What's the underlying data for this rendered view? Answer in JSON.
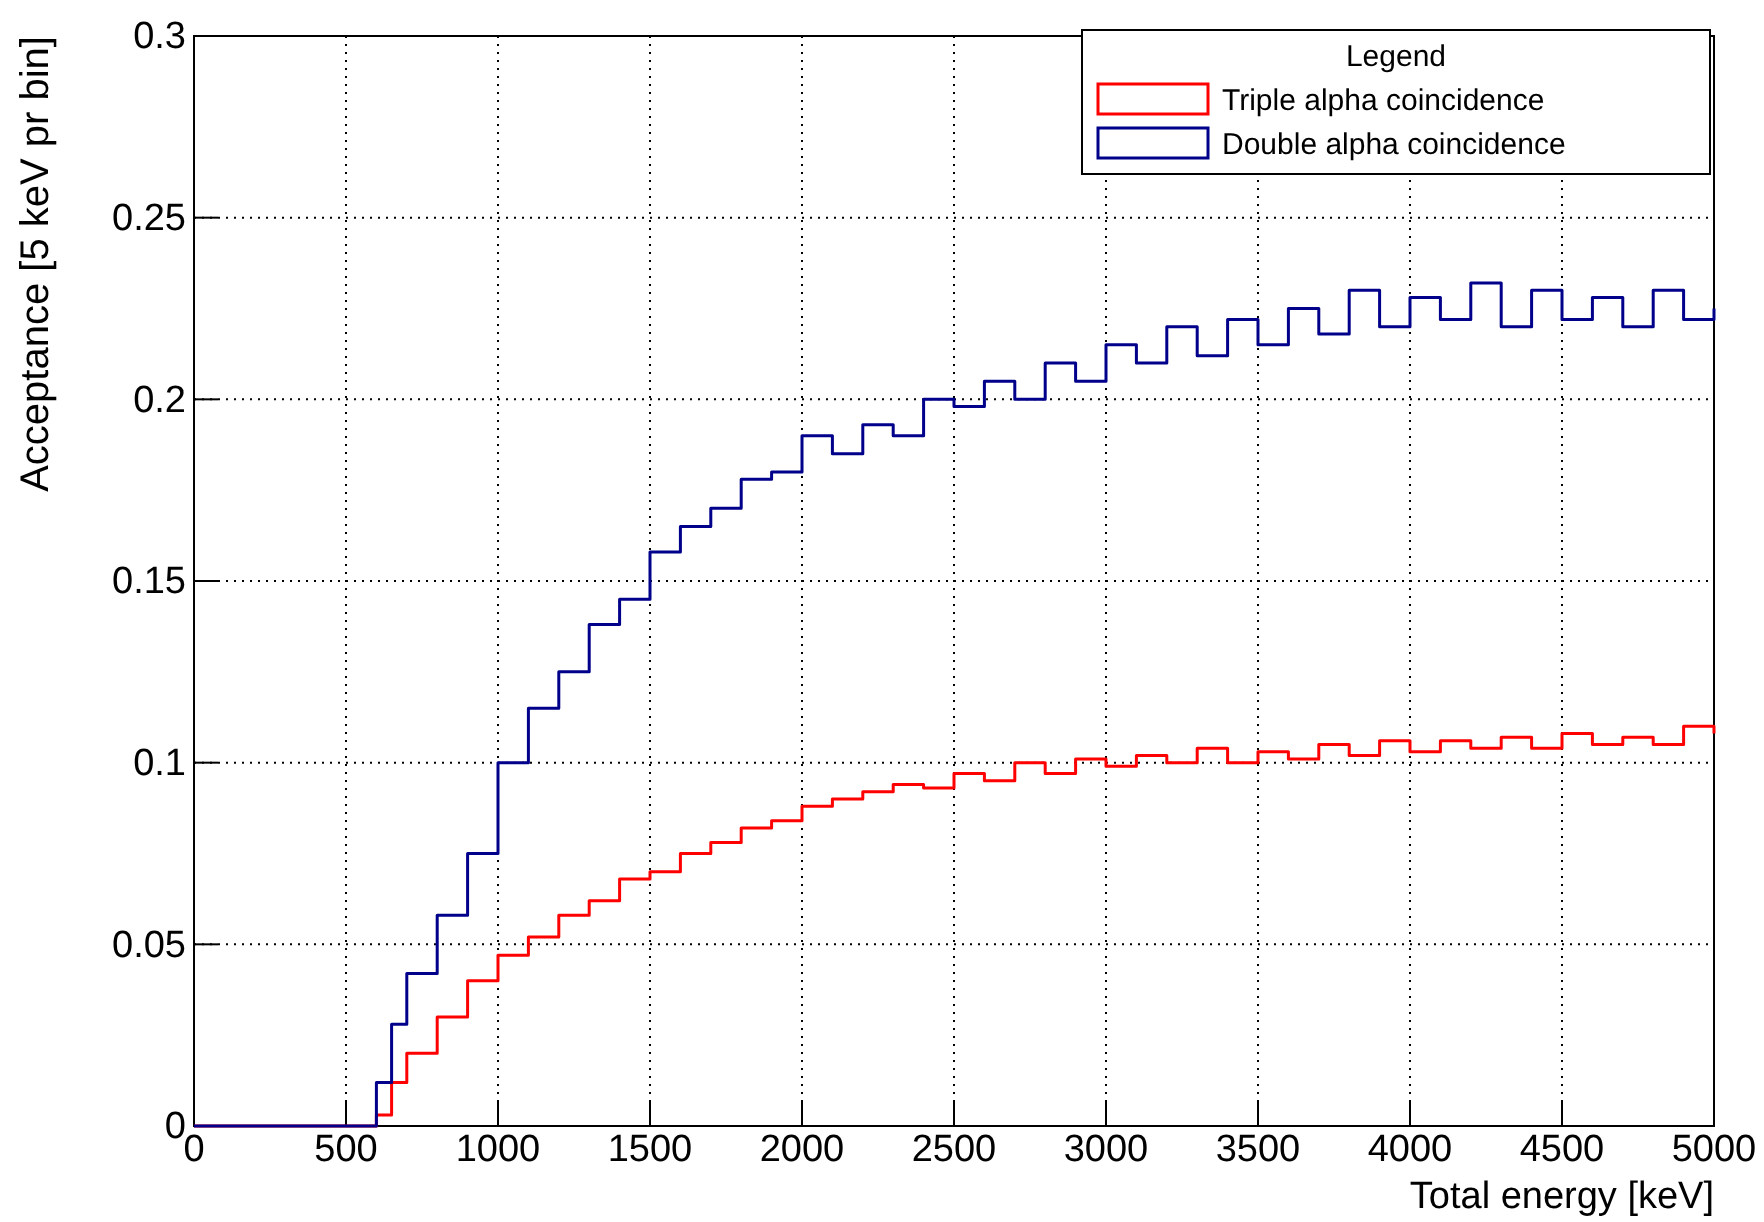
{
  "chart_data": {
    "type": "step",
    "xlabel": "Total energy [keV]",
    "ylabel": "Acceptance [5 keV pr bin]",
    "legend_title": "Legend",
    "legend": "top right",
    "grid": true,
    "xlim": [
      0,
      5000
    ],
    "xticks": [
      0,
      500,
      1000,
      1500,
      2000,
      2500,
      3000,
      3500,
      4000,
      4500,
      5000
    ],
    "ylim": [
      0,
      0.3
    ],
    "yticks": [
      0,
      0.05,
      0.1,
      0.15,
      0.2,
      0.25,
      0.3
    ],
    "series": [
      {
        "name": "Triple alpha coincidence",
        "color": "#ff0000",
        "x": [
          0,
          600,
          650,
          700,
          800,
          900,
          1000,
          1100,
          1200,
          1300,
          1400,
          1500,
          1600,
          1700,
          1800,
          1900,
          2000,
          2100,
          2200,
          2300,
          2400,
          2500,
          2600,
          2700,
          2800,
          2900,
          3000,
          3100,
          3200,
          3300,
          3400,
          3500,
          3600,
          3700,
          3800,
          3900,
          4000,
          4100,
          4200,
          4300,
          4400,
          4500,
          4600,
          4700,
          4800,
          4900,
          5000
        ],
        "values": [
          0,
          0.003,
          0.012,
          0.02,
          0.03,
          0.04,
          0.047,
          0.052,
          0.058,
          0.062,
          0.068,
          0.07,
          0.075,
          0.078,
          0.082,
          0.084,
          0.088,
          0.09,
          0.092,
          0.094,
          0.093,
          0.097,
          0.095,
          0.1,
          0.097,
          0.101,
          0.099,
          0.102,
          0.1,
          0.104,
          0.1,
          0.103,
          0.101,
          0.105,
          0.102,
          0.106,
          0.103,
          0.106,
          0.104,
          0.107,
          0.104,
          0.108,
          0.105,
          0.107,
          0.105,
          0.11,
          0.108
        ]
      },
      {
        "name": "Double alpha coincidence",
        "color": "#00008b",
        "x": [
          0,
          590,
          600,
          650,
          700,
          800,
          900,
          1000,
          1100,
          1200,
          1300,
          1400,
          1500,
          1600,
          1700,
          1800,
          1900,
          2000,
          2100,
          2200,
          2300,
          2400,
          2500,
          2600,
          2700,
          2800,
          2900,
          3000,
          3100,
          3200,
          3300,
          3400,
          3500,
          3600,
          3700,
          3800,
          3900,
          4000,
          4100,
          4200,
          4300,
          4400,
          4500,
          4600,
          4700,
          4800,
          4900,
          5000
        ],
        "values": [
          0,
          0,
          0.012,
          0.028,
          0.042,
          0.058,
          0.075,
          0.1,
          0.115,
          0.125,
          0.138,
          0.145,
          0.158,
          0.165,
          0.17,
          0.178,
          0.18,
          0.19,
          0.185,
          0.193,
          0.19,
          0.2,
          0.198,
          0.205,
          0.2,
          0.21,
          0.205,
          0.215,
          0.21,
          0.22,
          0.212,
          0.222,
          0.215,
          0.225,
          0.218,
          0.23,
          0.22,
          0.228,
          0.222,
          0.232,
          0.22,
          0.23,
          0.222,
          0.228,
          0.22,
          0.23,
          0.222,
          0.225
        ]
      }
    ]
  }
}
